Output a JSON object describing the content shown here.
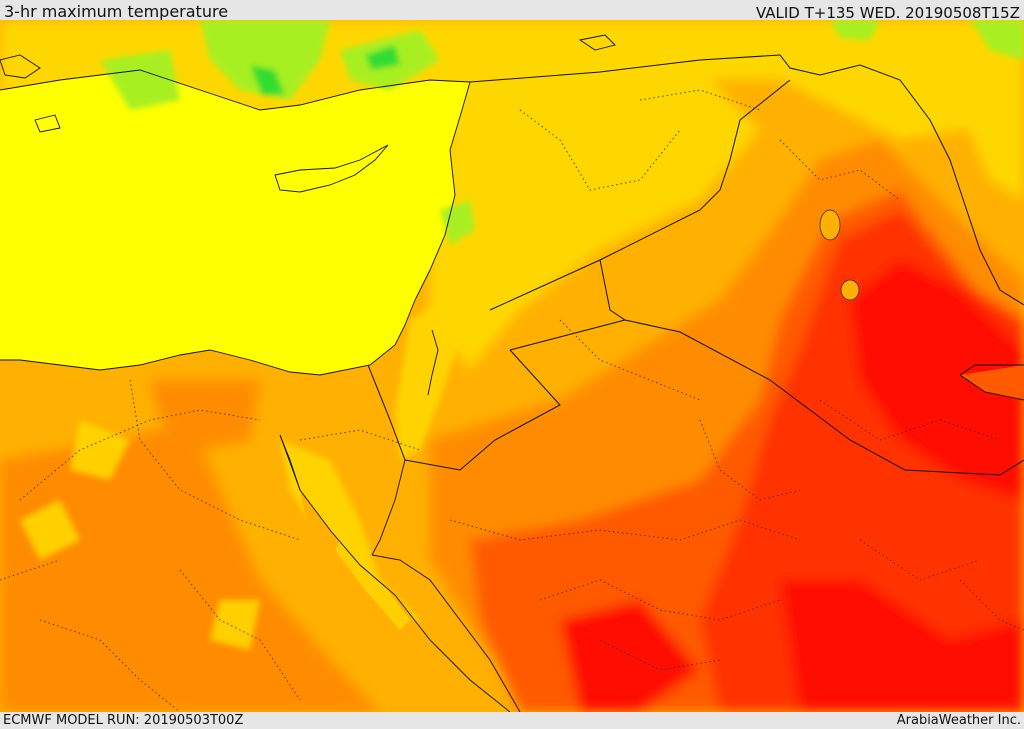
{
  "header": {
    "title": "3-hr maximum temperature",
    "valid": "VALID T+135 WED. 20190508T15Z"
  },
  "footer": {
    "model_run": "ECMWF MODEL RUN: 20190503T00Z",
    "credit": "ArabiaWeather Inc."
  },
  "palette": {
    "sea_yellow": "#ffff00",
    "light_orange": "#ffd700",
    "amber": "#ffb000",
    "orange": "#ff8c00",
    "dark_orange": "#ff5a00",
    "red_orange": "#ff3000",
    "red": "#ff1000",
    "green": "#33dd33",
    "light_green": "#a8ef20"
  }
}
